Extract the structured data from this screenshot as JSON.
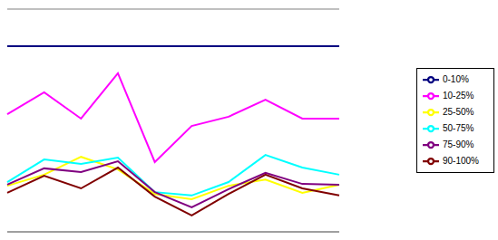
{
  "chart_data": {
    "type": "line",
    "categories": [
      null,
      null,
      null,
      null,
      null,
      null,
      null,
      null,
      null,
      null
    ],
    "series": [
      {
        "name": "0-10%",
        "color": "#000080",
        "values": [
          5.0,
          5.0,
          5.0,
          5.0,
          5.0,
          5.0,
          5.0,
          5.0,
          5.0,
          5.0
        ]
      },
      {
        "name": "10-25%",
        "color": "#ff00ff",
        "values": [
          3.17,
          3.76,
          3.05,
          4.27,
          1.88,
          2.85,
          3.1,
          3.56,
          3.05,
          3.05
        ]
      },
      {
        "name": "25-50%",
        "color": "#ffff00",
        "values": [
          1.24,
          1.54,
          2.02,
          1.68,
          1.02,
          0.88,
          1.24,
          1.41,
          1.05,
          1.27
        ]
      },
      {
        "name": "50-75%",
        "color": "#00ffff",
        "values": [
          1.34,
          1.95,
          1.83,
          2.0,
          1.07,
          0.98,
          1.34,
          2.07,
          1.73,
          1.54
        ]
      },
      {
        "name": "75-90%",
        "color": "#800080",
        "values": [
          1.27,
          1.71,
          1.61,
          1.9,
          1.07,
          0.66,
          1.15,
          1.59,
          1.29,
          1.27
        ]
      },
      {
        "name": "90-100%",
        "color": "#800000",
        "values": [
          1.05,
          1.51,
          1.17,
          1.73,
          0.95,
          0.44,
          1.02,
          1.54,
          1.17,
          0.98
        ]
      }
    ],
    "ylim": [
      0,
      6
    ],
    "yticks": [
      0,
      1,
      2,
      3,
      4,
      5,
      6
    ],
    "grid": true,
    "legend": "right",
    "tick_labels": false
  }
}
